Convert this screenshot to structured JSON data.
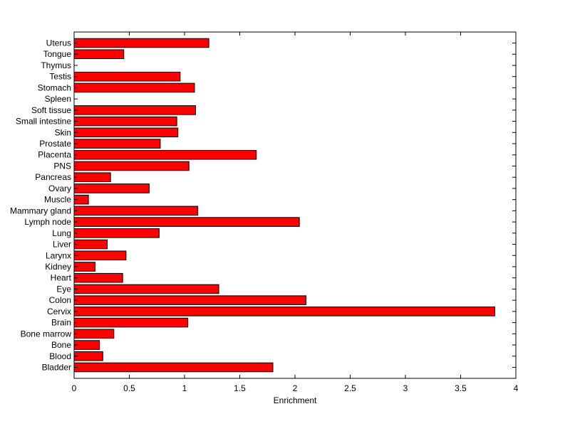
{
  "chart_data": {
    "type": "bar",
    "orientation": "horizontal",
    "title": "",
    "xlabel": "Enrichment",
    "ylabel": "",
    "xlim": [
      0,
      4
    ],
    "x_ticks": [
      "0",
      "0.5",
      "1",
      "1.5",
      "2",
      "2.5",
      "3",
      "3.5",
      "4"
    ],
    "grid": false,
    "bar_color": "#ff0000",
    "bar_edge_color": "#000000",
    "categories": [
      "Bladder",
      "Blood",
      "Bone",
      "Bone marrow",
      "Brain",
      "Cervix",
      "Colon",
      "Eye",
      "Heart",
      "Kidney",
      "Larynx",
      "Liver",
      "Lung",
      "Lymph node",
      "Mammary gland",
      "Muscle",
      "Ovary",
      "Pancreas",
      "PNS",
      "Placenta",
      "Prostate",
      "Skin",
      "Small intestine",
      "Soft tissue",
      "Spleen",
      "Stomach",
      "Testis",
      "Thymus",
      "Tongue",
      "Uterus"
    ],
    "values": [
      1.8,
      0.26,
      0.23,
      0.36,
      1.03,
      3.81,
      2.1,
      1.31,
      0.44,
      0.19,
      0.47,
      0.3,
      0.77,
      2.04,
      1.12,
      0.13,
      0.68,
      0.33,
      1.04,
      1.65,
      0.78,
      0.94,
      0.93,
      1.1,
      0.0,
      1.09,
      0.96,
      0.0,
      0.45,
      1.22
    ]
  }
}
